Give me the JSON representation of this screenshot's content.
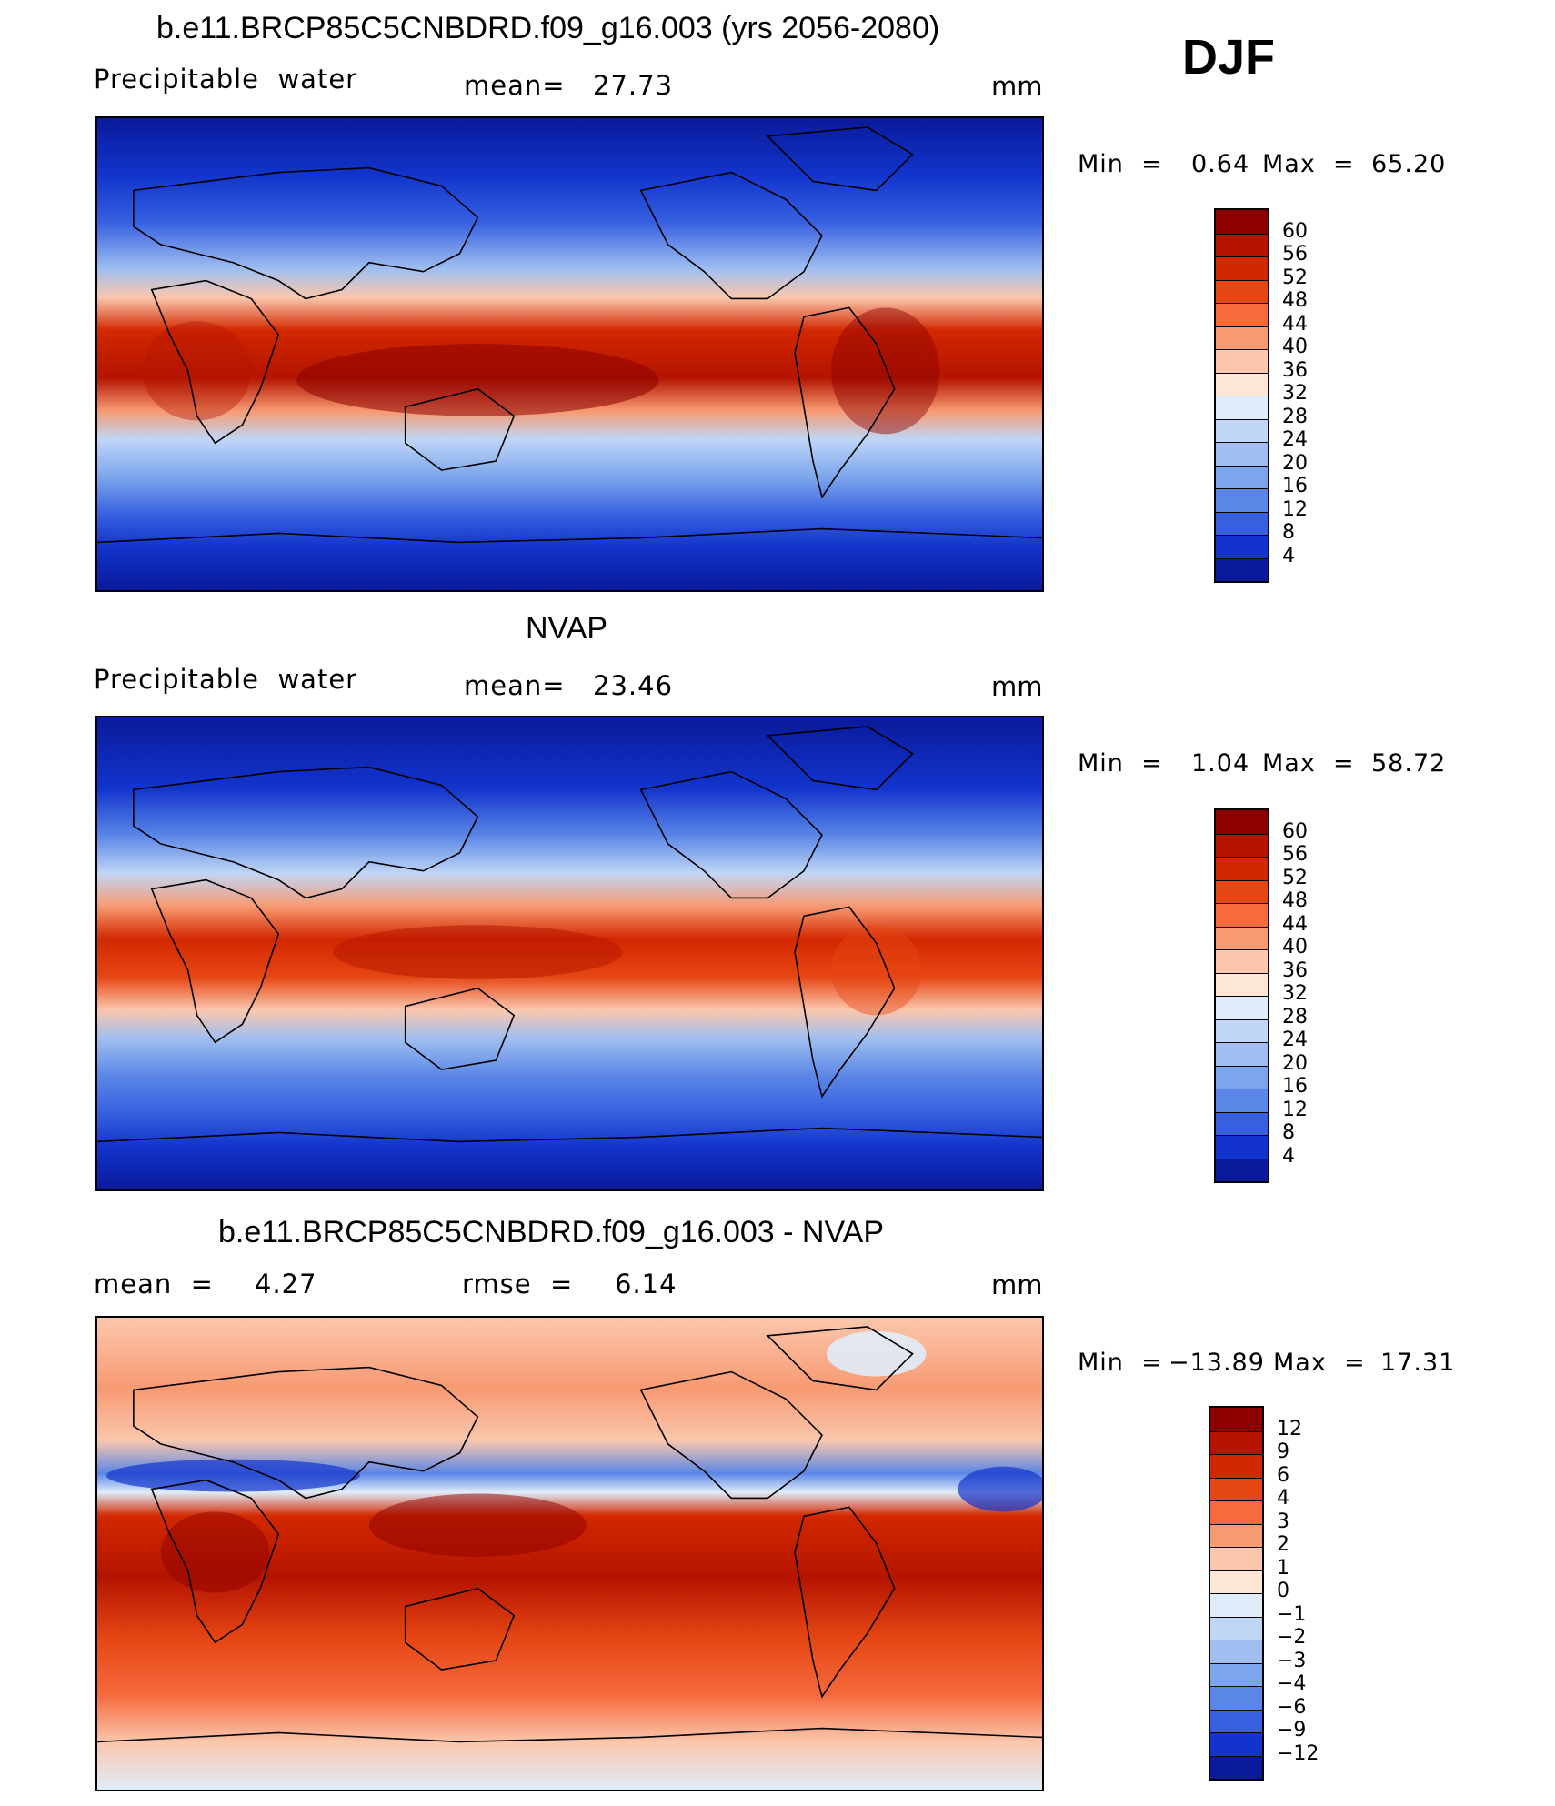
{
  "djf_label": "DJF",
  "panels": [
    {
      "title": "b.e11.BRCP85C5CNBDRD.f09_g16.003 (yrs 2056-2080)",
      "left_label": "Precipitable  water",
      "center_label": "mean=",
      "center_value": "27.73",
      "units": "mm",
      "min_label": "Min  =",
      "min_value": "0.64",
      "max_label": "Max  =",
      "max_value": "65.20",
      "levels": [
        "60",
        "56",
        "52",
        "48",
        "44",
        "40",
        "36",
        "32",
        "28",
        "24",
        "20",
        "16",
        "12",
        "8",
        "4"
      ],
      "colors": [
        "#8c0000",
        "#b41400",
        "#d22800",
        "#e64614",
        "#f66a3c",
        "#f79a72",
        "#fac7ad",
        "#fde6d4",
        "#e0ecfa",
        "#c0d6f6",
        "#a0bff0",
        "#7ca6ec",
        "#5a86e6",
        "#3660e0",
        "#1234cc",
        "#0a1a9a"
      ]
    },
    {
      "title": "NVAP",
      "left_label": "Precipitable  water",
      "center_label": "mean=",
      "center_value": "23.46",
      "units": "mm",
      "min_label": "Min  =",
      "min_value": "1.04",
      "max_label": "Max  =",
      "max_value": "58.72",
      "levels": [
        "60",
        "56",
        "52",
        "48",
        "44",
        "40",
        "36",
        "32",
        "28",
        "24",
        "20",
        "16",
        "12",
        "8",
        "4"
      ],
      "colors": [
        "#8c0000",
        "#b41400",
        "#d22800",
        "#e64614",
        "#f66a3c",
        "#f79a72",
        "#fac7ad",
        "#fde6d4",
        "#e0ecfa",
        "#c0d6f6",
        "#a0bff0",
        "#7ca6ec",
        "#5a86e6",
        "#3660e0",
        "#1234cc",
        "#0a1a9a"
      ]
    },
    {
      "title": "b.e11.BRCP85C5CNBDRD.f09_g16.003 - NVAP",
      "left_label": "mean  =",
      "left_value": "4.27",
      "center_label": "rmse  =",
      "center_value": "6.14",
      "units": "mm",
      "min_label": "Min  =",
      "min_value": "−13.89",
      "max_label": "Max  =",
      "max_value": "17.31",
      "levels": [
        "12",
        "9",
        "6",
        "4",
        "3",
        "2",
        "1",
        "0",
        "−1",
        "−2",
        "−3",
        "−4",
        "−6",
        "−9",
        "−12"
      ],
      "colors": [
        "#8c0000",
        "#b41400",
        "#d22800",
        "#e64614",
        "#f66a3c",
        "#f79a72",
        "#fac7ad",
        "#fde6d4",
        "#e0ecfa",
        "#c0d6f6",
        "#a0bff0",
        "#7ca6ec",
        "#5a86e6",
        "#3660e0",
        "#1234cc",
        "#0a1a9a"
      ]
    }
  ]
}
